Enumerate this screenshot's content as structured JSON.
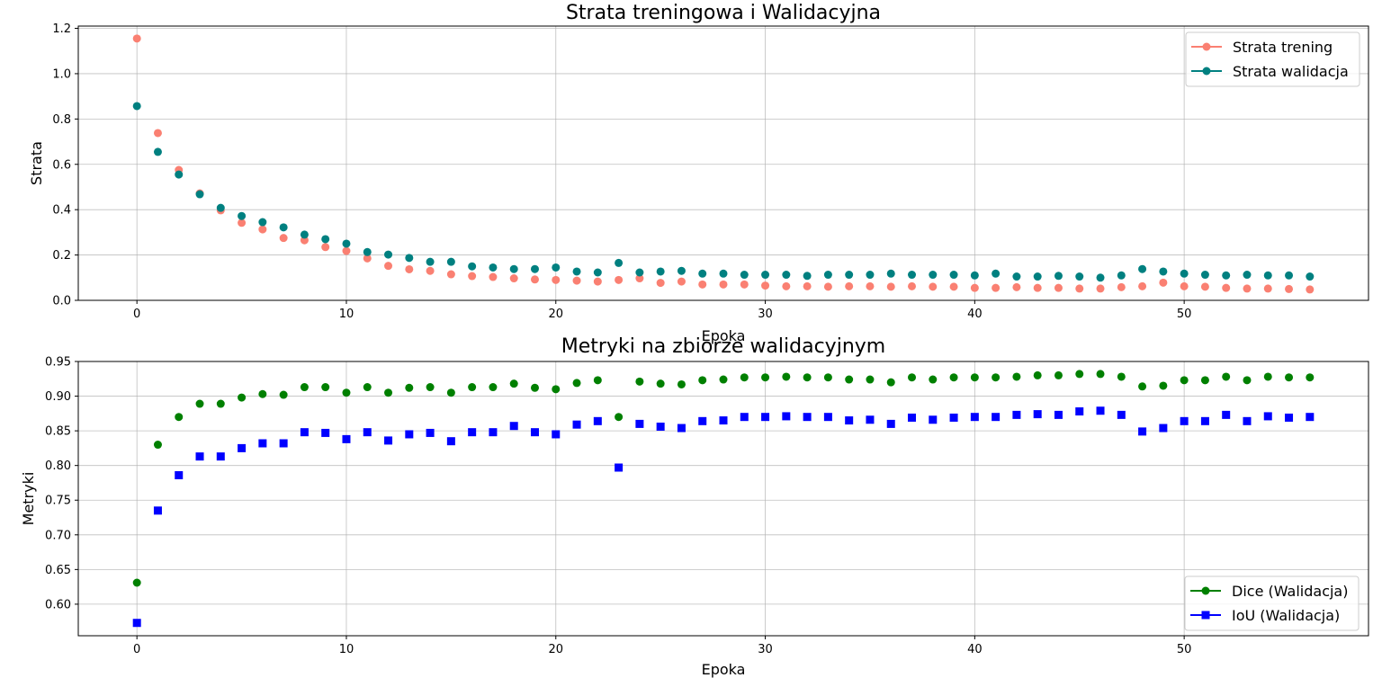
{
  "chart_data": [
    {
      "type": "scatter",
      "title": "Strata treningowa i Walidacyjna",
      "xlabel": "Epoka",
      "ylabel": "Strata",
      "xlim": [
        -2.8,
        58.8
      ],
      "ylim": [
        0.0,
        1.21
      ],
      "xticks": [
        0,
        10,
        20,
        30,
        40,
        50
      ],
      "yticks": [
        0.0,
        0.2,
        0.4,
        0.6,
        0.8,
        1.0,
        1.2
      ],
      "grid": true,
      "legend_position": "top-right",
      "x": [
        0,
        1,
        2,
        3,
        4,
        5,
        6,
        7,
        8,
        9,
        10,
        11,
        12,
        13,
        14,
        15,
        16,
        17,
        18,
        19,
        20,
        21,
        22,
        23,
        24,
        25,
        26,
        27,
        28,
        29,
        30,
        31,
        32,
        33,
        34,
        35,
        36,
        37,
        38,
        39,
        40,
        41,
        42,
        43,
        44,
        45,
        46,
        47,
        48,
        49,
        50,
        51,
        52,
        53,
        54,
        55,
        56
      ],
      "series": [
        {
          "name": "Strata trening",
          "color": "#fa8072",
          "marker": "circle",
          "values": [
            1.155,
            0.738,
            0.575,
            0.472,
            0.397,
            0.342,
            0.313,
            0.275,
            0.265,
            0.235,
            0.218,
            0.185,
            0.152,
            0.137,
            0.13,
            0.115,
            0.107,
            0.103,
            0.097,
            0.092,
            0.09,
            0.087,
            0.083,
            0.09,
            0.097,
            0.077,
            0.083,
            0.07,
            0.07,
            0.07,
            0.065,
            0.062,
            0.062,
            0.06,
            0.062,
            0.062,
            0.06,
            0.062,
            0.06,
            0.06,
            0.055,
            0.055,
            0.058,
            0.055,
            0.055,
            0.052,
            0.052,
            0.058,
            0.062,
            0.078,
            0.062,
            0.06,
            0.055,
            0.052,
            0.052,
            0.05,
            0.048
          ]
        },
        {
          "name": "Strata walidacja",
          "color": "#008080",
          "marker": "circle",
          "values": [
            0.857,
            0.655,
            0.555,
            0.468,
            0.408,
            0.372,
            0.345,
            0.322,
            0.29,
            0.27,
            0.25,
            0.213,
            0.202,
            0.187,
            0.17,
            0.17,
            0.15,
            0.145,
            0.138,
            0.138,
            0.145,
            0.127,
            0.123,
            0.165,
            0.123,
            0.127,
            0.13,
            0.118,
            0.118,
            0.113,
            0.113,
            0.113,
            0.108,
            0.113,
            0.113,
            0.113,
            0.118,
            0.113,
            0.113,
            0.113,
            0.11,
            0.118,
            0.105,
            0.105,
            0.108,
            0.105,
            0.1,
            0.11,
            0.138,
            0.127,
            0.118,
            0.113,
            0.11,
            0.113,
            0.11,
            0.11,
            0.105
          ]
        }
      ]
    },
    {
      "type": "scatter",
      "title": "Metryki na zbiorze walidacyjnym",
      "xlabel": "Epoka",
      "ylabel": "Metryki",
      "xlim": [
        -2.8,
        58.8
      ],
      "ylim": [
        0.5545,
        0.95
      ],
      "xticks": [
        0,
        10,
        20,
        30,
        40,
        50
      ],
      "yticks": [
        0.6,
        0.65,
        0.7,
        0.75,
        0.8,
        0.85,
        0.9,
        0.95
      ],
      "grid": true,
      "legend_position": "bottom-right",
      "x": [
        0,
        1,
        2,
        3,
        4,
        5,
        6,
        7,
        8,
        9,
        10,
        11,
        12,
        13,
        14,
        15,
        16,
        17,
        18,
        19,
        20,
        21,
        22,
        23,
        24,
        25,
        26,
        27,
        28,
        29,
        30,
        31,
        32,
        33,
        34,
        35,
        36,
        37,
        38,
        39,
        40,
        41,
        42,
        43,
        44,
        45,
        46,
        47,
        48,
        49,
        50,
        51,
        52,
        53,
        54,
        55,
        56
      ],
      "series": [
        {
          "name": "Dice (Walidacja)",
          "color": "#008000",
          "marker": "circle",
          "values": [
            0.631,
            0.83,
            0.87,
            0.889,
            0.889,
            0.898,
            0.903,
            0.902,
            0.913,
            0.913,
            0.905,
            0.913,
            0.905,
            0.912,
            0.913,
            0.905,
            0.913,
            0.913,
            0.918,
            0.912,
            0.91,
            0.919,
            0.923,
            0.87,
            0.921,
            0.918,
            0.917,
            0.923,
            0.924,
            0.927,
            0.927,
            0.928,
            0.927,
            0.927,
            0.924,
            0.924,
            0.92,
            0.927,
            0.924,
            0.927,
            0.927,
            0.927,
            0.928,
            0.93,
            0.93,
            0.932,
            0.932,
            0.928,
            0.914,
            0.915,
            0.923,
            0.923,
            0.928,
            0.923,
            0.928,
            0.927,
            0.927
          ]
        },
        {
          "name": "IoU (Walidacja)",
          "color": "#0000ff",
          "marker": "square",
          "values": [
            0.573,
            0.735,
            0.786,
            0.813,
            0.813,
            0.825,
            0.832,
            0.832,
            0.848,
            0.847,
            0.838,
            0.848,
            0.836,
            0.845,
            0.847,
            0.835,
            0.848,
            0.848,
            0.857,
            0.848,
            0.845,
            0.859,
            0.864,
            0.797,
            0.86,
            0.856,
            0.854,
            0.864,
            0.865,
            0.87,
            0.87,
            0.871,
            0.87,
            0.87,
            0.865,
            0.866,
            0.86,
            0.869,
            0.866,
            0.869,
            0.87,
            0.87,
            0.873,
            0.874,
            0.873,
            0.878,
            0.879,
            0.873,
            0.849,
            0.854,
            0.864,
            0.864,
            0.873,
            0.864,
            0.871,
            0.869,
            0.87
          ]
        }
      ]
    }
  ]
}
